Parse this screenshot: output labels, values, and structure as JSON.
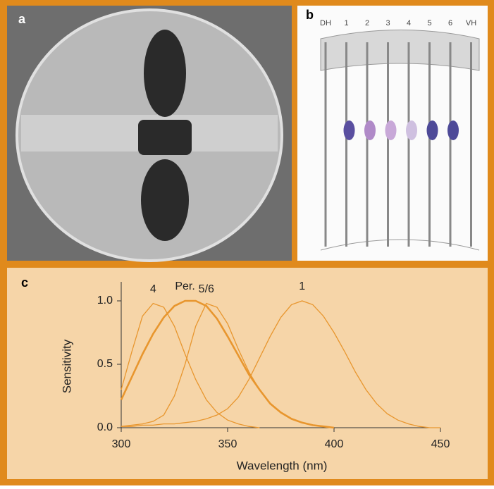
{
  "panel_labels": [
    "a",
    "b",
    "c"
  ],
  "diagram_labels": [
    "DH",
    "1",
    "2",
    "3",
    "4",
    "5",
    "6",
    "VH"
  ],
  "chart_data": {
    "type": "line",
    "xlabel": "Wavelength (nm)",
    "ylabel": "Sensitivity",
    "x": [
      300,
      305,
      310,
      315,
      320,
      325,
      330,
      335,
      340,
      345,
      350,
      355,
      360,
      365,
      370,
      375,
      380,
      385,
      390,
      395,
      400,
      405,
      410,
      415,
      420,
      425,
      430,
      435,
      440,
      445,
      450
    ],
    "xlim": [
      300,
      450
    ],
    "xticks": [
      300,
      350,
      400,
      450
    ],
    "ylim": [
      0,
      1.15
    ],
    "yticks": [
      {
        "value": 0,
        "label": "0.0"
      },
      0.5,
      {
        "value": 1,
        "label": "1.0"
      }
    ],
    "series": [
      {
        "name": "4",
        "color": "#e8962e",
        "values": [
          0.3,
          0.6,
          0.88,
          0.98,
          0.95,
          0.8,
          0.58,
          0.38,
          0.22,
          0.12,
          0.06,
          0.03,
          0.01,
          0.0,
          null,
          null,
          null,
          null,
          null,
          null,
          null,
          null,
          null,
          null,
          null,
          null,
          null,
          null,
          null,
          null,
          null
        ]
      },
      {
        "name": "Per.",
        "color": "#e8962e",
        "values": [
          0.22,
          0.4,
          0.58,
          0.74,
          0.87,
          0.96,
          1.0,
          1.0,
          0.96,
          0.86,
          0.72,
          0.57,
          0.42,
          0.3,
          0.19,
          0.12,
          0.07,
          0.04,
          0.02,
          0.01,
          0.0,
          null,
          null,
          null,
          null,
          null,
          null,
          null,
          null,
          null,
          null
        ]
      },
      {
        "name": "5/6",
        "color": "#e8962e",
        "values": [
          0.01,
          0.02,
          0.03,
          0.05,
          0.1,
          0.25,
          0.5,
          0.8,
          0.98,
          0.95,
          0.82,
          0.62,
          0.44,
          0.3,
          0.19,
          0.12,
          0.07,
          0.04,
          0.02,
          0.01,
          0.0,
          null,
          null,
          null,
          null,
          null,
          null,
          null,
          null,
          null,
          null
        ]
      },
      {
        "name": "1",
        "color": "#e8962e",
        "values": [
          0.01,
          0.01,
          0.02,
          0.02,
          0.03,
          0.03,
          0.04,
          0.05,
          0.07,
          0.1,
          0.15,
          0.24,
          0.38,
          0.55,
          0.72,
          0.87,
          0.97,
          1.0,
          0.97,
          0.88,
          0.75,
          0.6,
          0.44,
          0.3,
          0.19,
          0.11,
          0.06,
          0.03,
          0.01,
          0.0,
          0.0
        ]
      }
    ]
  }
}
